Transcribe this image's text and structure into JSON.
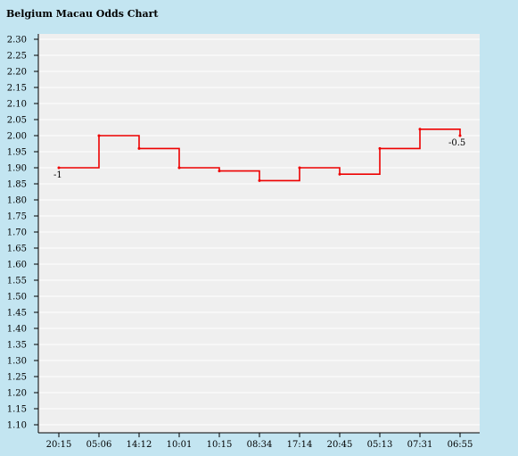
{
  "chart_data": {
    "type": "line",
    "title": "Belgium Macau Odds Chart",
    "xlabel": "",
    "ylabel": "",
    "ylim": [
      1.1,
      2.3
    ],
    "y_ticks": [
      "2.30",
      "2.25",
      "2.20",
      "2.15",
      "2.10",
      "2.05",
      "2.00",
      "1.95",
      "1.90",
      "1.85",
      "1.80",
      "1.75",
      "1.70",
      "1.65",
      "1.60",
      "1.55",
      "1.50",
      "1.45",
      "1.40",
      "1.35",
      "1.30",
      "1.25",
      "1.20",
      "1.15",
      "1.10"
    ],
    "categories": [
      "20:15",
      "05:06",
      "14:12",
      "10:01",
      "10:15",
      "08:34",
      "17:14",
      "20:45",
      "05:13",
      "07:31",
      "06:55"
    ],
    "series": [
      {
        "values": [
          1.9,
          2.0,
          1.96,
          1.9,
          1.89,
          1.86,
          1.9,
          1.88,
          1.96,
          2.02,
          2.0
        ],
        "color": "#ee0000",
        "step": "after"
      }
    ],
    "annotations": [
      {
        "index": 0,
        "text": "-1"
      },
      {
        "index": 10,
        "text": "-0.5"
      }
    ],
    "grid": true,
    "colors": {
      "background": "#c3e5f1",
      "plot_bg": "#efefef",
      "grid": "#ffffff",
      "line": "#ee0000"
    }
  }
}
